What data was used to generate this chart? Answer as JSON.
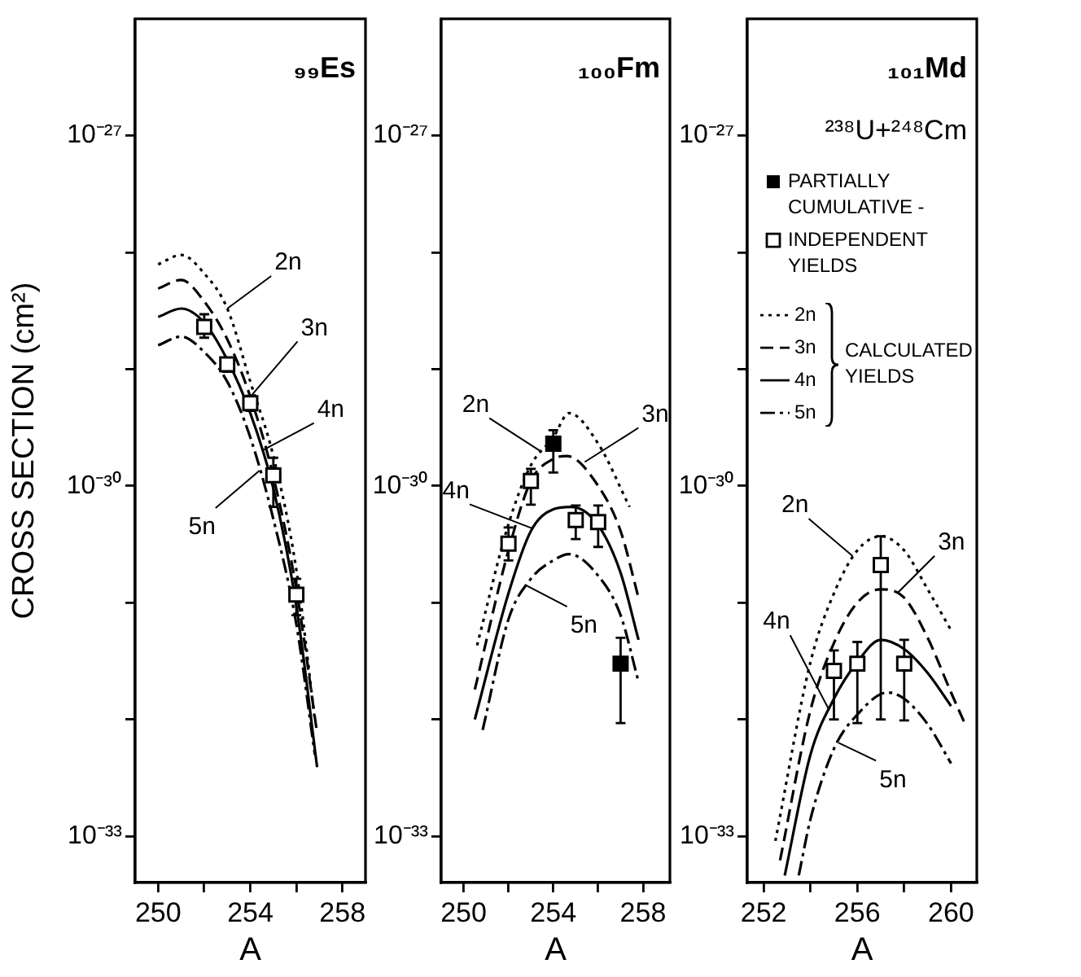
{
  "chart_data": [
    {
      "type": "line",
      "title": "₉₉Es",
      "xlabel": "A",
      "ylabel": "CROSS SECTION (cm²)",
      "log": "y",
      "xlim": [
        249,
        259
      ],
      "xticks": [
        250,
        {
          "value": 252,
          "label": null
        },
        254,
        {
          "value": 256,
          "label": null
        },
        258
      ],
      "ylim": [
        4e-34,
        1e-26
      ],
      "yticks": [
        {
          "value": 1e-27,
          "label": "10⁻²⁷"
        },
        {
          "value": 1e-28,
          "label": null
        },
        {
          "value": 1e-29,
          "label": null
        },
        {
          "value": 1e-30,
          "label": "10⁻³⁰"
        },
        {
          "value": 1e-31,
          "label": null
        },
        {
          "value": 1e-32,
          "label": null
        },
        {
          "value": 1e-33,
          "label": "10⁻³³"
        }
      ],
      "series": [
        {
          "type": "line",
          "line_style": "dotted",
          "color": "#000000",
          "x": [
            250,
            251,
            252,
            253,
            254,
            255,
            256,
            256.8
          ],
          "values": [
            7.9e-29,
            9.5e-29,
            6.6e-29,
            3.3e-29,
            7.8e-30,
            1.8e-30,
            1.9e-31,
            1e-32
          ]
        },
        {
          "type": "line",
          "line_style": "dashed",
          "color": "#000000",
          "x": [
            250,
            251,
            252,
            253,
            254,
            255,
            256,
            256.9
          ],
          "values": [
            4.9e-29,
            5.8e-29,
            3.8e-29,
            1.8e-29,
            5.8e-30,
            1.2e-30,
            1.3e-31,
            7.6e-33
          ]
        },
        {
          "type": "line",
          "line_style": "solid",
          "color": "#000000",
          "x": [
            250,
            251,
            252,
            253,
            254,
            255,
            256,
            256.9
          ],
          "values": [
            2.8e-29,
            3.3e-29,
            2.5e-29,
            1.2e-29,
            4.2e-30,
            9.5e-31,
            9.3e-32,
            3.9e-33
          ]
        },
        {
          "type": "line",
          "line_style": "dashdot",
          "color": "#000000",
          "x": [
            250,
            251,
            252,
            253,
            254,
            255,
            256,
            256.8
          ],
          "values": [
            1.6e-29,
            1.9e-29,
            1.4e-29,
            7.8e-30,
            2.6e-30,
            5.2e-31,
            6.5e-32,
            5e-33
          ]
        },
        {
          "type": "scatter",
          "marker": "square-open",
          "color": "#000000",
          "x": [
            252,
            253,
            254,
            255,
            256
          ],
          "values": [
            2.3e-29,
            1.1e-29,
            5.1e-30,
            1.23e-30,
            1.17e-31
          ],
          "errors": [
            [
              1.86e-29,
              2.95e-29
            ],
            [
              9.5e-30,
              1.25e-29
            ],
            [
              4.4e-30,
              5.9e-30
            ],
            [
              6.6e-31,
              1.74e-30
            ],
            [
              7.8e-32,
              1.6e-31
            ]
          ]
        }
      ],
      "annotations": [
        {
          "text": "2n",
          "x": 253,
          "y": 3.3e-29
        },
        {
          "text": "3n",
          "x": 254,
          "y": 5.8e-30
        },
        {
          "text": "4n",
          "x": 254.5,
          "y": 2e-30
        },
        {
          "text": "5n",
          "x": 254.4,
          "y": 1.35e-30
        }
      ]
    },
    {
      "type": "line",
      "title": "₁₀₀Fm",
      "xlabel": "A",
      "log": "y",
      "xlim": [
        249,
        259.2
      ],
      "xticks": [
        250,
        {
          "value": 252,
          "label": null
        },
        254,
        {
          "value": 256,
          "label": null
        },
        258
      ],
      "ylim": [
        4e-34,
        1e-26
      ],
      "yticks": [
        {
          "value": 1e-27,
          "label": "10⁻²⁷"
        },
        {
          "value": 1e-28,
          "label": null
        },
        {
          "value": 1e-29,
          "label": null
        },
        {
          "value": 1e-30,
          "label": "10⁻³⁰"
        },
        {
          "value": 1e-31,
          "label": null
        },
        {
          "value": 1e-32,
          "label": null
        },
        {
          "value": 1e-33,
          "label": "10⁻³³"
        }
      ],
      "series": [
        {
          "type": "line",
          "line_style": "dotted",
          "color": "#000000",
          "x": [
            250.6,
            252,
            253,
            254,
            254.7,
            256,
            257.4
          ],
          "values": [
            4.3e-32,
            4.7e-31,
            1.5e-30,
            2.6e-30,
            4.2e-30,
            2.3e-30,
            6.6e-31
          ]
        },
        {
          "type": "line",
          "line_style": "dashed",
          "color": "#000000",
          "x": [
            250.5,
            252,
            253,
            254,
            254.6,
            256,
            257,
            257.8
          ],
          "values": [
            1.8e-32,
            2.8e-31,
            1.1e-30,
            1.7e-30,
            1.8e-30,
            1e-30,
            4.1e-31,
            1.1e-31
          ]
        },
        {
          "type": "line",
          "line_style": "solid",
          "color": "#000000",
          "x": [
            250.5,
            252,
            253,
            254,
            254.8,
            256,
            257,
            257.8
          ],
          "values": [
            1e-32,
            1.2e-31,
            4.1e-31,
            6.3e-31,
            6.6e-31,
            4.6e-31,
            1.8e-31,
            4.8e-32
          ]
        },
        {
          "type": "line",
          "line_style": "dashdot",
          "color": "#000000",
          "x": [
            250.85,
            252,
            253,
            254,
            254.7,
            256,
            257,
            257.8
          ],
          "values": [
            8.1e-33,
            7.2e-32,
            1.6e-31,
            2.3e-31,
            2.6e-31,
            1.7e-31,
            7.8e-32,
            2.1e-32
          ]
        },
        {
          "type": "scatter",
          "marker": "square",
          "color": "#000000",
          "x": [
            254,
            257
          ],
          "values": [
            2.3e-30,
            3e-32
          ],
          "errors": [
            [
              1.3e-30,
              3e-30
            ],
            [
              9.3e-33,
              5e-32
            ]
          ]
        },
        {
          "type": "scatter",
          "marker": "square-open",
          "color": "#000000",
          "x": [
            252,
            253,
            255,
            256
          ],
          "values": [
            3.2e-31,
            1.1e-30,
            5.1e-31,
            4.9e-31
          ],
          "errors": [
            [
              2.3e-31,
              4.4e-31
            ],
            [
              6.9e-31,
              1.4e-30
            ],
            [
              3.5e-31,
              6.8e-31
            ],
            [
              3e-31,
              6.8e-31
            ]
          ]
        }
      ],
      "annotations": [
        {
          "text": "2n",
          "x": 253.4,
          "y": 2e-30
        },
        {
          "text": "3n",
          "x": 255.4,
          "y": 1.6e-30
        },
        {
          "text": "4n",
          "x": 253.1,
          "y": 4.3e-31
        },
        {
          "text": "5n",
          "x": 252.8,
          "y": 1.4e-31
        }
      ]
    },
    {
      "type": "line",
      "title": "₁₀₁Md",
      "subtitle": "²³⁸U+²⁴⁸Cm",
      "xlabel": "A",
      "log": "y",
      "legend": "top",
      "xlim": [
        251.3,
        261.1
      ],
      "xticks": [
        252,
        {
          "value": 254,
          "label": null
        },
        256,
        {
          "value": 258,
          "label": null
        },
        260
      ],
      "ylim": [
        4e-34,
        1e-26
      ],
      "yticks": [
        {
          "value": 1e-27,
          "label": "10⁻²⁷"
        },
        {
          "value": 1e-28,
          "label": null
        },
        {
          "value": 1e-29,
          "label": null
        },
        {
          "value": 1e-30,
          "label": "10⁻³⁰"
        },
        {
          "value": 1e-31,
          "label": null
        },
        {
          "value": 1e-32,
          "label": null
        },
        {
          "value": 1e-33,
          "label": "10⁻³³"
        }
      ],
      "series": [
        {
          "name": "PARTIALLY CUMULATIVE -",
          "type": "scatter",
          "marker": "square",
          "color": "#000000"
        },
        {
          "name": "INDEPENDENT YIELDS",
          "type": "scatter",
          "marker": "square-open",
          "color": "#000000",
          "x": [
            255,
            256,
            257,
            258
          ],
          "values": [
            2.6e-32,
            3e-32,
            2.1e-31,
            3e-32
          ],
          "errors": [
            [
              1e-32,
              3.9e-32
            ],
            [
              9.3e-33,
              4.6e-32
            ],
            [
              1e-32,
              3.7e-31
            ],
            [
              9.8e-33,
              4.8e-32
            ]
          ]
        },
        {
          "name": "2n",
          "type": "line",
          "line_style": "dotted",
          "color": "#000000",
          "x": [
            252.5,
            254,
            255,
            256,
            257,
            258,
            259,
            260
          ],
          "values": [
            9.1e-34,
            3.1e-32,
            1.2e-31,
            2.8e-31,
            3.7e-31,
            2.8e-31,
            1.3e-31,
            5.8e-32
          ]
        },
        {
          "name": "3n",
          "type": "line",
          "line_style": "dashed",
          "color": "#000000",
          "x": [
            252.7,
            254,
            255,
            256,
            257,
            258,
            259,
            260,
            260.6
          ],
          "values": [
            6.2e-34,
            1.2e-32,
            4.5e-32,
            1e-31,
            1.3e-31,
            1.1e-31,
            5e-32,
            1.7e-32,
            9.1e-33
          ]
        },
        {
          "name": "4n",
          "type": "line",
          "line_style": "solid",
          "color": "#000000",
          "x": [
            252.9,
            254,
            255,
            256,
            257,
            258,
            259,
            260
          ],
          "values": [
            4.6e-34,
            5e-33,
            1.5e-32,
            3.1e-32,
            4.8e-32,
            4e-32,
            2.5e-32,
            1.3e-32
          ]
        },
        {
          "name": "5n",
          "type": "line",
          "line_style": "dashdot",
          "color": "#000000",
          "x": [
            253.5,
            254,
            255,
            256,
            257.3,
            258,
            259,
            260
          ],
          "values": [
            4.6e-34,
            1.4e-33,
            5.6e-33,
            1.1e-32,
            1.7e-32,
            1.5e-32,
            9.1e-33,
            4.2e-33
          ]
        }
      ],
      "annotations": [
        "CALCULATED YIELDS",
        {
          "text": "2n",
          "x": 255.8,
          "y": 2.5e-31
        },
        {
          "text": "3n",
          "x": 257.7,
          "y": 1.2e-31
        },
        {
          "text": "4n",
          "x": 254.8,
          "y": 1.2e-32
        },
        {
          "text": "5n",
          "x": 255.2,
          "y": 6.3e-33
        }
      ]
    }
  ]
}
